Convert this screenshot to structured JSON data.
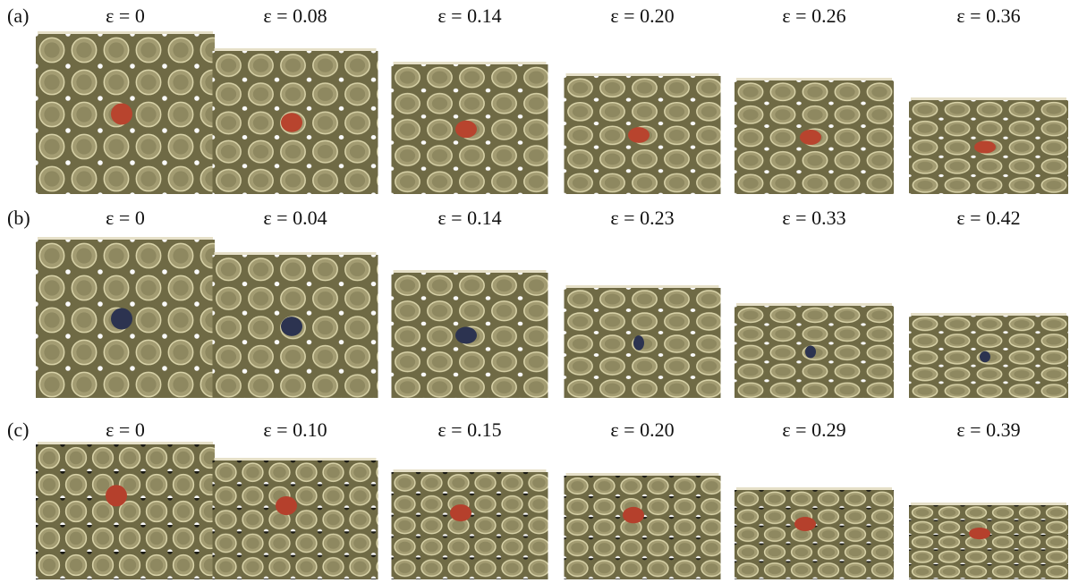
{
  "rows": [
    {
      "label": "(a)",
      "panels": [
        "ε = 0",
        "ε = 0.08",
        "ε = 0.14",
        "ε = 0.20",
        "ε = 0.26",
        "ε = 0.36"
      ]
    },
    {
      "label": "(b)",
      "panels": [
        "ε = 0",
        "ε = 0.04",
        "ε = 0.14",
        "ε = 0.23",
        "ε = 0.33",
        "ε = 0.42"
      ]
    },
    {
      "label": "(c)",
      "panels": [
        "ε = 0",
        "ε = 0.10",
        "ε = 0.15",
        "ε = 0.20",
        "ε = 0.29",
        "ε = 0.39"
      ]
    }
  ]
}
